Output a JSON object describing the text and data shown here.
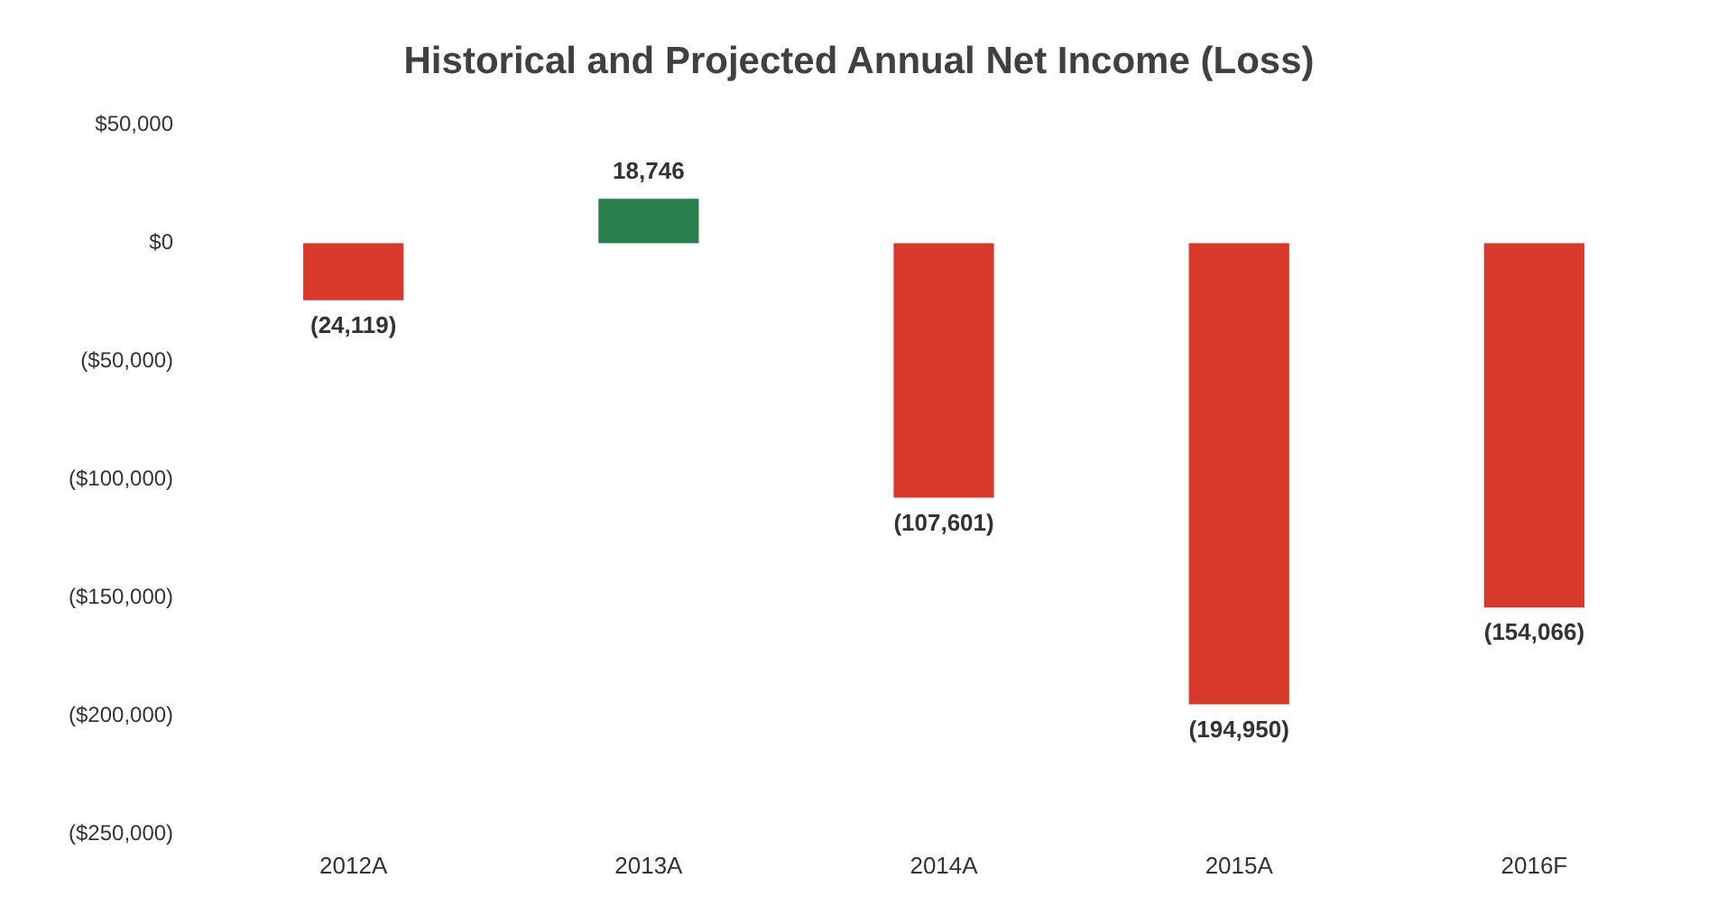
{
  "chart_data": {
    "type": "bar",
    "title": "Historical and Projected Annual Net Income (Loss)",
    "categories": [
      "2012A",
      "2013A",
      "2014A",
      "2015A",
      "2016F"
    ],
    "values": [
      -24119,
      18746,
      -107601,
      -194950,
      -154066
    ],
    "colors": [
      "#d8392b",
      "#2a7f4f",
      "#d8392b",
      "#d8392b",
      "#d8392b"
    ],
    "value_labels": [
      "(24,119)",
      "18,746",
      "(107,601)",
      "(194,950)",
      "(154,066)"
    ],
    "ylim": [
      -250000,
      50000
    ],
    "yticks": [
      {
        "value": 50000,
        "label": "$50,000"
      },
      {
        "value": 0,
        "label": "$0"
      },
      {
        "value": -50000,
        "label": "($50,000)"
      },
      {
        "value": -100000,
        "label": "($100,000)"
      },
      {
        "value": -150000,
        "label": "($150,000)"
      },
      {
        "value": -200000,
        "label": "($200,000)"
      },
      {
        "value": -250000,
        "label": "($250,000)"
      }
    ],
    "grid": false,
    "legend": false
  }
}
